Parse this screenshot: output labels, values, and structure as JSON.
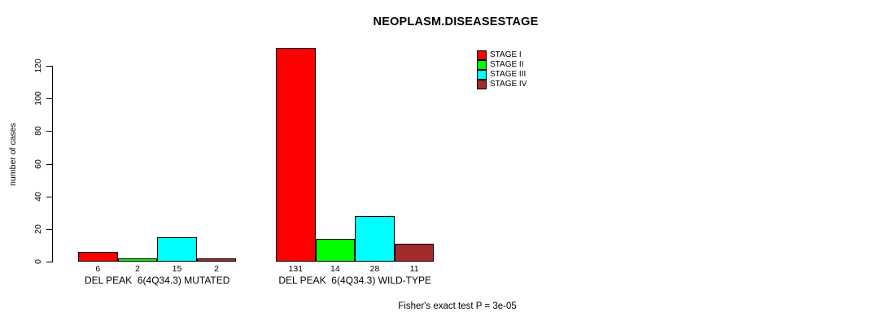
{
  "chart_data": {
    "type": "bar",
    "title": "NEOPLASM.DISEASESTAGE",
    "ylabel": "number of cases",
    "xlabel": "",
    "ylim": [
      0,
      131
    ],
    "yticks": [
      0,
      20,
      40,
      60,
      80,
      100,
      120
    ],
    "grid": false,
    "legend_position": "top-right",
    "categories": [
      "DEL PEAK  6(4Q34.3) MUTATED",
      "DEL PEAK  6(4Q34.3) WILD-TYPE"
    ],
    "series": [
      {
        "name": "STAGE I",
        "color": "#FF0000",
        "values": [
          6,
          131
        ]
      },
      {
        "name": "STAGE II",
        "color": "#00FF00",
        "values": [
          2,
          14
        ]
      },
      {
        "name": "STAGE III",
        "color": "#00FFFF",
        "values": [
          15,
          28
        ]
      },
      {
        "name": "STAGE IV",
        "color": "#A52A2A",
        "values": [
          2,
          11
        ]
      }
    ],
    "bar_value_labels": [
      [
        "6",
        "2",
        "15",
        "2"
      ],
      [
        "131",
        "14",
        "28",
        "11"
      ]
    ],
    "footnote": "Fisher's exact test P = 3e-05",
    "colors": {
      "axis": "#000000",
      "text": "#000000",
      "background": "#FFFFFF",
      "bar_border": "#000000"
    }
  }
}
